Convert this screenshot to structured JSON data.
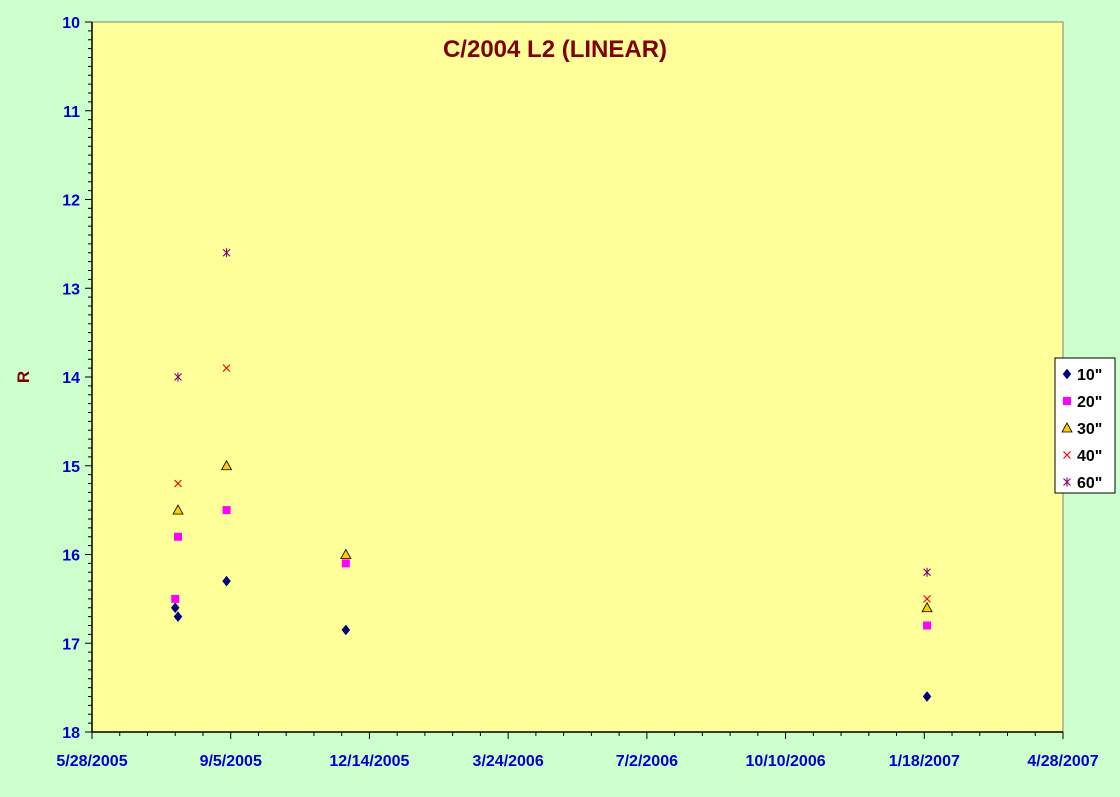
{
  "chart_data": {
    "type": "scatter",
    "title": "C/2004 L2 (LINEAR)",
    "xlabel": "",
    "ylabel": "R",
    "xlim": [
      "2005-05-28",
      "2007-04-28"
    ],
    "ylim": [
      10,
      18
    ],
    "y_inverted": true,
    "x_ticks": [
      "5/28/2005",
      "9/5/2005",
      "12/14/2005",
      "3/24/2006",
      "7/2/2006",
      "10/10/2006",
      "1/18/2007",
      "4/28/2007"
    ],
    "y_ticks": [
      "10",
      "11",
      "12",
      "13",
      "14",
      "15",
      "16",
      "17",
      "18"
    ],
    "grid": false,
    "legend_position": "right",
    "plot_background": "#ffff99",
    "series": [
      {
        "name": "10\"",
        "marker": "diamond",
        "color": "#000080",
        "x": [
          "2005-07-27",
          "2005-07-29",
          "2005-09-02",
          "2005-11-27",
          "2007-01-20"
        ],
        "y": [
          16.6,
          16.7,
          16.3,
          16.85,
          17.6
        ]
      },
      {
        "name": "20\"",
        "marker": "square",
        "color": "#ff00ff",
        "x": [
          "2005-07-27",
          "2005-07-29",
          "2005-09-02",
          "2005-11-27",
          "2007-01-20"
        ],
        "y": [
          16.5,
          15.8,
          15.5,
          16.1,
          16.8
        ]
      },
      {
        "name": "30\"",
        "marker": "triangle",
        "color": "#ffcc00",
        "x": [
          "2005-07-29",
          "2005-09-02",
          "2005-11-27",
          "2007-01-20"
        ],
        "y": [
          15.5,
          15.0,
          16.0,
          16.6
        ]
      },
      {
        "name": "40\"",
        "marker": "x",
        "color": "#ff0000",
        "x": [
          "2005-07-29",
          "2005-09-02",
          "2007-01-20"
        ],
        "y": [
          15.2,
          13.9,
          16.5
        ]
      },
      {
        "name": "60\"",
        "marker": "star",
        "color": "#800080",
        "x": [
          "2005-07-29",
          "2005-09-02",
          "2007-01-20"
        ],
        "y": [
          14.0,
          12.6,
          16.2
        ]
      }
    ]
  }
}
